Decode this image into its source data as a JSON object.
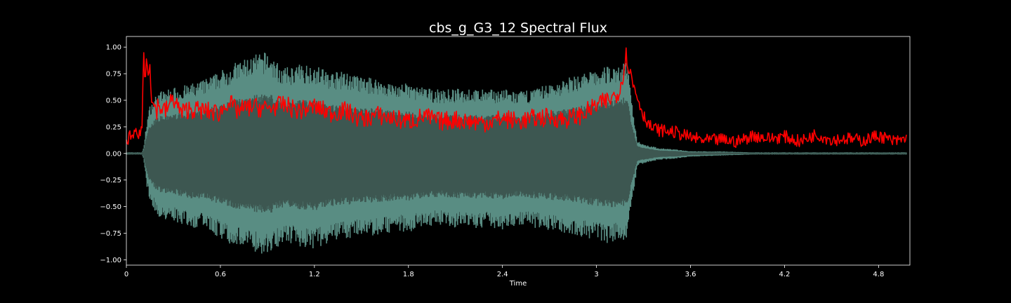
{
  "chart_data": {
    "type": "line",
    "title": "cbs_g_G3_12 Spectral Flux",
    "xlabel": "Time",
    "ylabel": "",
    "xlim": [
      0,
      5.0
    ],
    "ylim": [
      -1.05,
      1.1
    ],
    "x_ticks": [
      0,
      0.6,
      1.2,
      1.8,
      2.4,
      3.0,
      3.6,
      4.2,
      4.8
    ],
    "x_tick_labels": [
      "0",
      "0.6",
      "1.2",
      "1.8",
      "2.4",
      "3",
      "3.6",
      "4.2",
      "4.8"
    ],
    "y_ticks": [
      1.0,
      0.75,
      0.5,
      0.25,
      0.0,
      -0.25,
      -0.5,
      -0.75,
      -1.0
    ],
    "y_tick_labels": [
      "1.00",
      "0.75",
      "0.50",
      "0.25",
      "0.00",
      "−0.25",
      "−0.50",
      "−0.75",
      "−1.00"
    ],
    "grid": false,
    "colors": {
      "background": "#000000",
      "waveform_outer": "#5e958a",
      "waveform_inner": "#3d5751",
      "flux": "#ff0000"
    },
    "series": [
      {
        "kind": "waveform-envelope",
        "x": [
          0.0,
          0.1,
          0.11,
          0.13,
          0.15,
          0.2,
          0.3,
          0.4,
          0.5,
          0.6,
          0.7,
          0.8,
          0.9,
          0.95,
          1.0,
          1.1,
          1.2,
          1.3,
          1.4,
          1.5,
          1.6,
          1.7,
          1.8,
          1.9,
          2.0,
          2.1,
          2.2,
          2.3,
          2.4,
          2.5,
          2.6,
          2.7,
          2.8,
          2.9,
          3.0,
          3.1,
          3.15,
          3.19,
          3.22,
          3.26,
          3.3,
          3.4,
          3.5,
          3.6,
          3.8,
          4.0,
          4.5,
          4.98
        ],
        "upper": [
          0.01,
          0.01,
          0.05,
          0.3,
          0.45,
          0.58,
          0.62,
          0.65,
          0.7,
          0.78,
          0.86,
          0.92,
          0.96,
          0.88,
          0.8,
          0.84,
          0.84,
          0.77,
          0.77,
          0.72,
          0.71,
          0.66,
          0.66,
          0.62,
          0.6,
          0.61,
          0.61,
          0.6,
          0.61,
          0.58,
          0.61,
          0.66,
          0.7,
          0.76,
          0.79,
          0.84,
          0.83,
          0.92,
          0.55,
          0.12,
          0.09,
          0.05,
          0.04,
          0.02,
          0.02,
          0.01,
          0.01,
          0.01
        ],
        "lower": [
          -0.01,
          -0.01,
          -0.05,
          -0.3,
          -0.45,
          -0.6,
          -0.64,
          -0.7,
          -0.72,
          -0.8,
          -0.88,
          -0.92,
          -0.96,
          -0.9,
          -0.84,
          -0.88,
          -0.9,
          -0.84,
          -0.81,
          -0.78,
          -0.77,
          -0.74,
          -0.74,
          -0.7,
          -0.68,
          -0.7,
          -0.71,
          -0.7,
          -0.72,
          -0.68,
          -0.7,
          -0.73,
          -0.75,
          -0.79,
          -0.82,
          -0.86,
          -0.8,
          -0.85,
          -0.55,
          -0.12,
          -0.1,
          -0.06,
          -0.05,
          -0.03,
          -0.02,
          -0.01,
          -0.01,
          -0.01
        ],
        "inner_scale": 0.6
      },
      {
        "kind": "flux",
        "x": [
          0.0,
          0.02,
          0.04,
          0.06,
          0.08,
          0.1,
          0.11,
          0.12,
          0.13,
          0.14,
          0.15,
          0.16,
          0.17,
          0.18,
          0.19,
          0.2,
          0.25,
          0.3,
          0.35,
          0.4,
          0.5,
          0.6,
          0.65,
          0.7,
          0.8,
          0.9,
          1.0,
          1.1,
          1.2,
          1.3,
          1.4,
          1.5,
          1.6,
          1.7,
          1.8,
          1.9,
          2.0,
          2.1,
          2.2,
          2.3,
          2.4,
          2.5,
          2.6,
          2.7,
          2.8,
          2.9,
          3.0,
          3.1,
          3.15,
          3.19,
          3.21,
          3.23,
          3.25,
          3.3,
          3.35,
          3.4,
          3.5,
          3.6,
          3.7,
          3.8,
          3.9,
          4.0,
          4.1,
          4.2,
          4.3,
          4.4,
          4.5,
          4.6,
          4.7,
          4.8,
          4.9,
          4.98
        ],
        "y": [
          0.08,
          0.18,
          0.12,
          0.22,
          0.15,
          0.28,
          0.95,
          0.62,
          1.0,
          0.72,
          0.9,
          0.55,
          0.42,
          0.48,
          0.38,
          0.45,
          0.4,
          0.52,
          0.38,
          0.42,
          0.4,
          0.38,
          0.5,
          0.4,
          0.44,
          0.42,
          0.46,
          0.4,
          0.44,
          0.38,
          0.4,
          0.32,
          0.36,
          0.33,
          0.3,
          0.35,
          0.3,
          0.32,
          0.3,
          0.29,
          0.33,
          0.3,
          0.33,
          0.34,
          0.32,
          0.36,
          0.45,
          0.52,
          0.6,
          0.93,
          0.8,
          0.66,
          0.58,
          0.36,
          0.24,
          0.22,
          0.2,
          0.15,
          0.12,
          0.13,
          0.11,
          0.17,
          0.14,
          0.16,
          0.11,
          0.18,
          0.13,
          0.14,
          0.12,
          0.17,
          0.11,
          0.14
        ]
      }
    ]
  }
}
